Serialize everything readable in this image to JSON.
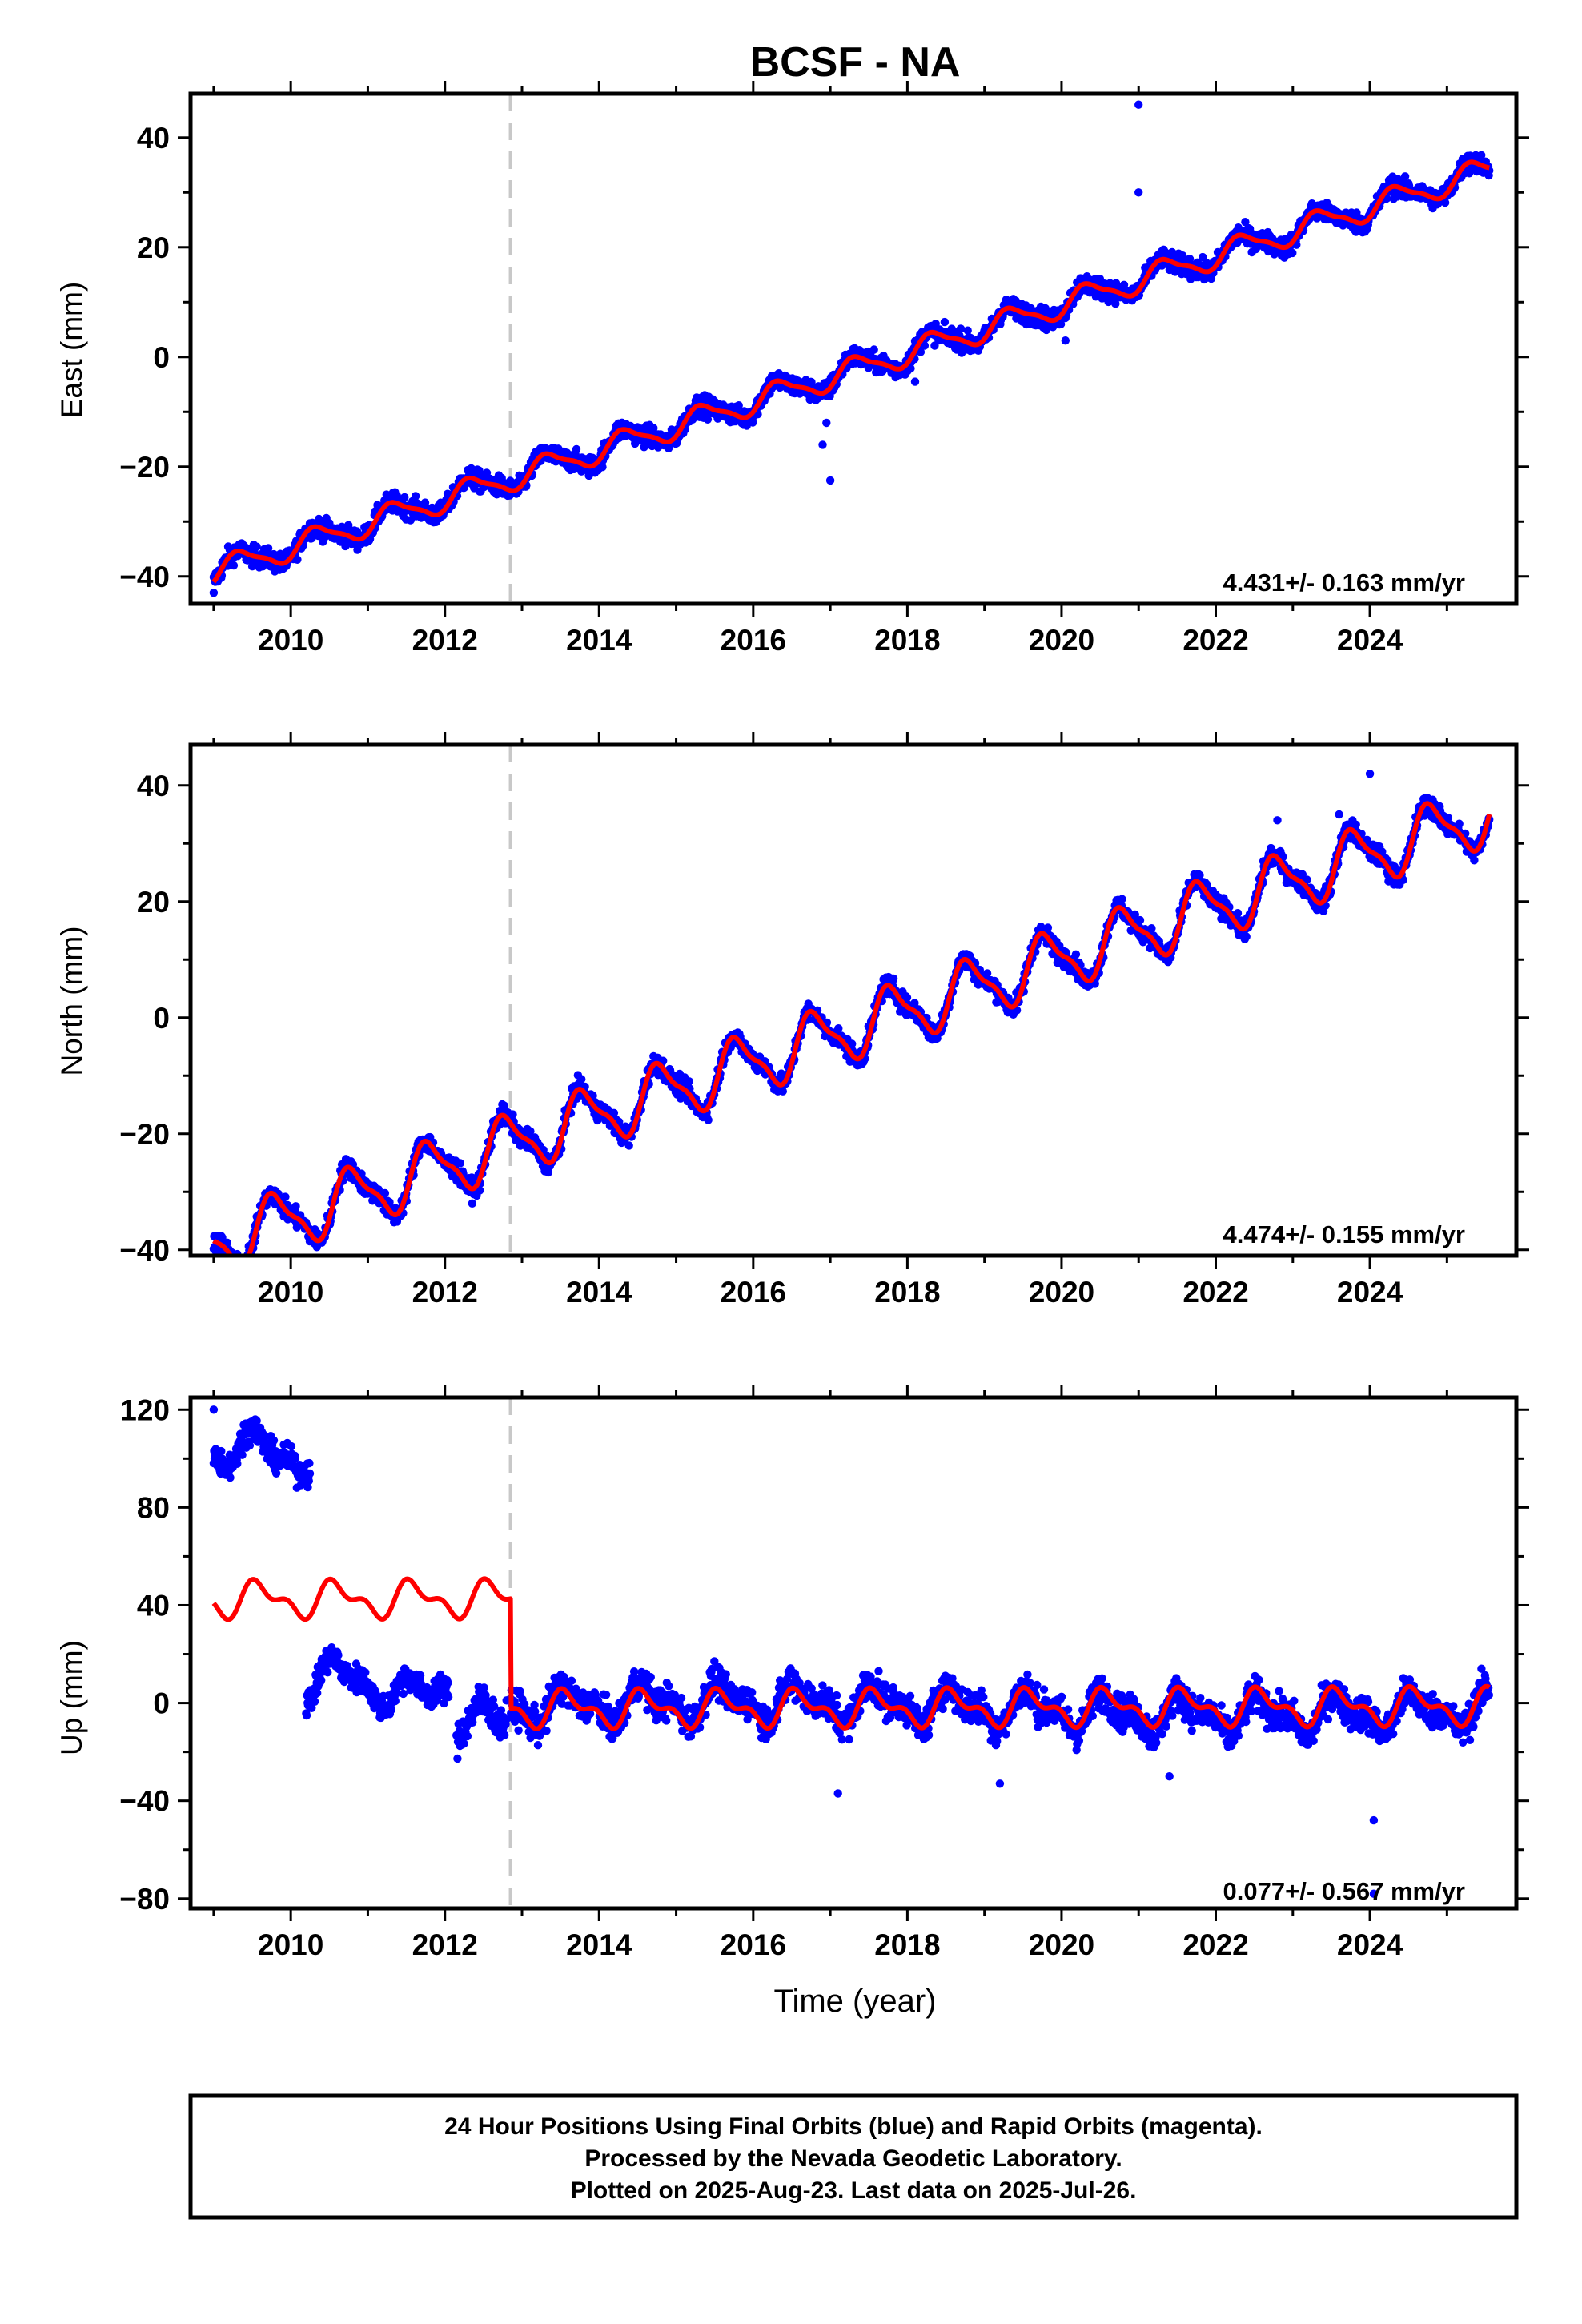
{
  "title": "BCSF - NA",
  "colors": {
    "data": "#0000ff",
    "model": "#ff0000",
    "offset_line": "#c8c8c8",
    "frame": "#000000"
  },
  "chart_data": [
    {
      "type": "scatter",
      "ylabel": "East (mm)",
      "xlim": [
        2008.7,
        2025.9
      ],
      "ylim": [
        -45,
        48
      ],
      "x_ticks": [
        2010,
        2012,
        2014,
        2016,
        2018,
        2020,
        2022,
        2024
      ],
      "y_ticks": [
        -40,
        -20,
        0,
        20,
        40
      ],
      "offset_epoch": 2012.85,
      "rate_label": "4.431+/- 0.163 mm/yr",
      "model": {
        "slope": 4.431,
        "ref_year": 2017.5,
        "offset": -1.5,
        "ann_amp": 2.2,
        "semi_amp": 0.6,
        "phase": 0.1,
        "step": 0
      },
      "noise": 1.3,
      "outliers": [
        [
          2009.0,
          -43
        ],
        [
          2016.9,
          -16
        ],
        [
          2017.0,
          -22.5
        ],
        [
          2021.0,
          46
        ],
        [
          2021.0,
          30
        ],
        [
          2020.05,
          3
        ],
        [
          2018.1,
          -4.5
        ],
        [
          2016.95,
          -12
        ]
      ]
    },
    {
      "type": "scatter",
      "ylabel": "North (mm)",
      "xlim": [
        2008.7,
        2025.9
      ],
      "ylim": [
        -41,
        47
      ],
      "x_ticks": [
        2010,
        2012,
        2014,
        2016,
        2018,
        2020,
        2022,
        2024
      ],
      "y_ticks": [
        -40,
        -20,
        0,
        20,
        40
      ],
      "offset_epoch": 2012.85,
      "rate_label": "4.474+/- 0.155 mm/yr",
      "model": {
        "slope": 4.474,
        "ref_year": 2017.5,
        "offset": -1.0,
        "ann_amp": 4.8,
        "semi_amp": 1.5,
        "phase": 0.55,
        "step": 0
      },
      "noise": 1.2,
      "outliers": [
        [
          2023.6,
          35
        ],
        [
          2024.0,
          42
        ],
        [
          2022.8,
          34
        ]
      ]
    },
    {
      "type": "scatter",
      "ylabel": "Up (mm)",
      "xlabel": "Time (year)",
      "xlim": [
        2008.7,
        2025.9
      ],
      "ylim": [
        -84,
        125
      ],
      "x_ticks": [
        2010,
        2012,
        2014,
        2016,
        2018,
        2020,
        2022,
        2024
      ],
      "y_ticks": [
        -80,
        -40,
        0,
        40,
        80,
        120
      ],
      "offset_epoch": 2012.85,
      "rate_label": "0.077+/- 0.567 mm/yr",
      "model": {
        "slope": 0.077,
        "ref_year": 2017.5,
        "offset": -2.0,
        "ann_amp": 6.0,
        "semi_amp": 3.5,
        "phase": 0.35,
        "step": 45.0
      },
      "segments": [
        {
          "from": 2009.0,
          "to": 2010.25,
          "level": 103,
          "amp": 8,
          "noise": 4
        },
        {
          "from": 2010.2,
          "to": 2012.05,
          "level": 7,
          "amp": 10,
          "noise": 4
        },
        {
          "from": 2012.15,
          "to": 2012.8,
          "level": -7,
          "amp": 8,
          "noise": 5
        },
        {
          "from": 2012.85,
          "to": 2025.55,
          "level": -2,
          "amp": 7,
          "noise": 5
        }
      ],
      "outliers": [
        [
          2009.0,
          120
        ],
        [
          2024.05,
          -48
        ],
        [
          2024.05,
          -78
        ],
        [
          2017.1,
          -37
        ],
        [
          2019.2,
          -33
        ],
        [
          2021.4,
          -30
        ]
      ]
    }
  ],
  "footer": {
    "line1": "24 Hour Positions Using Final Orbits (blue) and Rapid Orbits (magenta).",
    "line2": "Processed by the Nevada Geodetic Laboratory.",
    "line3": "Plotted on 2025-Aug-23. Last data on 2025-Jul-26."
  }
}
